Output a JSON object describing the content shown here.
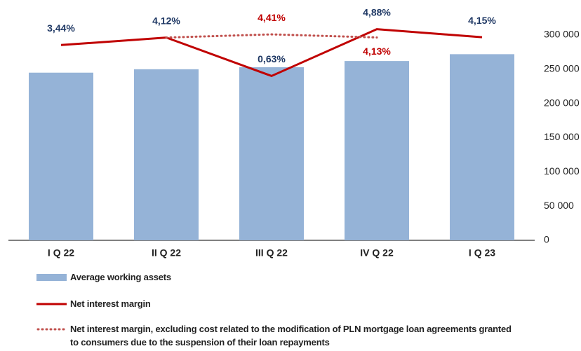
{
  "chart_data": {
    "type": "bar",
    "categories": [
      "I Q 22",
      "II Q 22",
      "III Q 22",
      "IV Q 22",
      "I Q 23"
    ],
    "ylim": [
      0,
      300000
    ],
    "yticks": [
      0,
      {
        "value": 50000,
        "label": "50 000"
      },
      {
        "value": 100000,
        "label": "100 000"
      },
      {
        "value": 150000,
        "label": "150 000"
      },
      {
        "value": 200000,
        "label": "200 000"
      },
      {
        "value": 250000,
        "label": "250 000"
      },
      {
        "value": 300000,
        "label": "300 000"
      }
    ],
    "y2lim": [
      -14.3,
      4.35
    ],
    "series": [
      {
        "name": "Average working assets",
        "type": "bar",
        "color": "#95b3d7",
        "values": [
          245000,
          250000,
          253000,
          262000,
          272000
        ]
      },
      {
        "name": "Net interest margin",
        "type": "line",
        "axis": "y2",
        "color": "#c00000",
        "label_color": "#1f3864",
        "values": [
          3.44,
          4.12,
          0.63,
          4.88,
          4.15
        ],
        "value_labels": [
          "3,44%",
          "4,12%",
          "0,63%",
          "4,88%",
          "4,15%"
        ]
      },
      {
        "name": "Net interest margin, excluding cost related to the modification of PLN mortgage loan agreements granted to consumers due to the suspension of their loan repayments",
        "type": "line",
        "style": "dotted",
        "axis": "y2",
        "color": "#c0504d",
        "label_color": "#c00000",
        "values": [
          null,
          4.12,
          4.41,
          4.13,
          null
        ],
        "value_labels": [
          null,
          null,
          "4,41%",
          "4,13%",
          null
        ]
      }
    ]
  }
}
